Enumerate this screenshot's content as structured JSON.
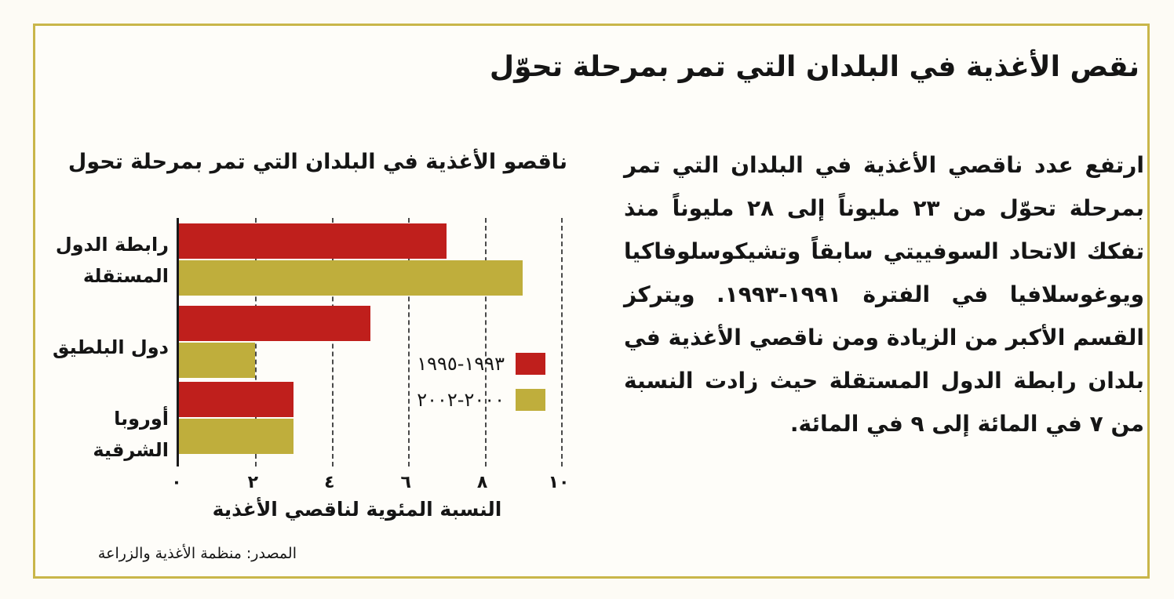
{
  "page": {
    "title": "نقص الأغذية في البلدان التي تمر بمرحلة تحوّل"
  },
  "chart_data": {
    "type": "bar",
    "orientation": "horizontal",
    "title": "ناقصو الأغذية في البلدان التي تمر بمرحلة تحول",
    "categories": [
      "رابطة الدول المستقلة",
      "دول البلطيق",
      "أوروبا الشرقية"
    ],
    "series": [
      {
        "name": "١٩٩٣-١٩٩٥",
        "color": "#bf1f1c",
        "values": [
          7,
          5,
          3
        ]
      },
      {
        "name": "٢٠٠٠-٢٠٠٢",
        "color": "#bfae3c",
        "values": [
          9,
          2,
          3
        ]
      }
    ],
    "xlabel": "النسبة المئوية لناقصي الأغذية",
    "xlim": [
      0,
      10
    ],
    "x_ticks": [
      "٠",
      "٢",
      "٤",
      "٦",
      "٨",
      "١٠"
    ],
    "x_tick_values": [
      0,
      2,
      4,
      6,
      8,
      10
    ],
    "grid": "vertical-dashed",
    "legend_position": "inside-plot-lower-right",
    "unit": "percent"
  },
  "paragraph": {
    "text": "ارتفع عدد ناقصي الأغذية في البلدان التي تمر بمرحلة تحوّل من ٢٣ مليوناً إلى ٢٨ مليوناً منذ تفكك الاتحاد السوفييتي سابقاً وتشيكوسلوفاكيا ويوغوسلافيا في الفترة ١٩٩١-١٩٩٣. ويتركز القسم الأكبر من الزيادة ومن ناقصي الأغذية في بلدان رابطة الدول المستقلة حيث زادت النسبة من ٧ في المائة إلى ٩ في المائة."
  },
  "source": {
    "text": "المصدر: منظمة الأغذية والزراعة"
  },
  "colors": {
    "border": "#c9b64a",
    "series1_red": "#bf1f1c",
    "series2_olive": "#bfae3c",
    "text": "#151515"
  }
}
